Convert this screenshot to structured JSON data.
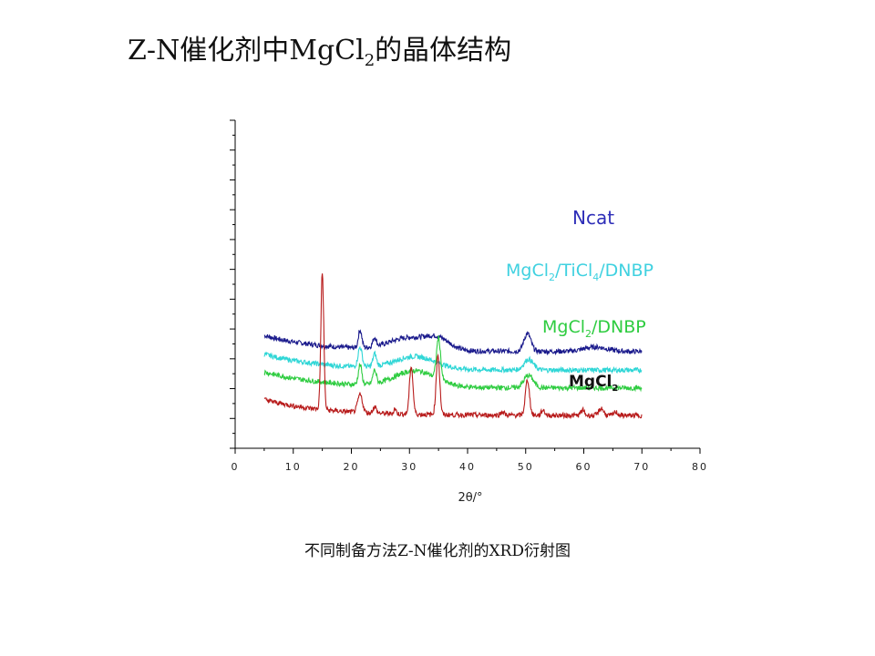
{
  "title": {
    "prefix": "Z-N催化剂中MgCl",
    "sub": "2",
    "suffix": "的晶体结构"
  },
  "caption": "不同制备方法Z-N催化剂的XRD衍射图",
  "chart_data": {
    "type": "line",
    "xlabel": "2θ/°",
    "ylabel": "",
    "xlim": [
      0,
      80
    ],
    "xticks": [
      "0",
      "10",
      "20",
      "30",
      "40",
      "50",
      "60",
      "70",
      "80"
    ],
    "yticks_shown": false,
    "grid": false,
    "series": [
      {
        "name": "Ncat",
        "name_parts": [
          "Ncat"
        ],
        "color": "#1a1a8c",
        "offset": 3.6,
        "peaks": [
          [
            21.5,
            1.0,
            0.3
          ],
          [
            24,
            0.5,
            0.3
          ],
          [
            30,
            0.7,
            3.5
          ],
          [
            35,
            0.55,
            2.0
          ],
          [
            50.3,
            1.0,
            0.6
          ],
          [
            62,
            0.25,
            2.0
          ]
        ],
        "label_color": "#2e2eb8"
      },
      {
        "name": "MgCl2/TiCl4/DNBP",
        "name_parts": [
          "MgCl",
          "2",
          "/TiCl",
          "4",
          "/DNBP"
        ],
        "color": "#2ed6d6",
        "offset": 2.55,
        "peaks": [
          [
            21.5,
            1.1,
            0.35
          ],
          [
            24,
            0.7,
            0.3
          ],
          [
            31,
            0.7,
            3.5
          ],
          [
            50.5,
            0.6,
            0.8
          ]
        ],
        "label_color": "#3fd1e0"
      },
      {
        "name": "MgCl2/DNBP",
        "name_parts": [
          "MgCl",
          "2",
          "/DNBP"
        ],
        "color": "#2ecc40",
        "offset": 1.55,
        "peaks": [
          [
            21.5,
            1.1,
            0.3
          ],
          [
            24,
            0.75,
            0.3
          ],
          [
            31,
            0.9,
            3.5
          ],
          [
            35,
            2.3,
            0.35
          ],
          [
            50.5,
            0.7,
            0.8
          ]
        ],
        "label_color": "#2ecc40"
      },
      {
        "name": "MgCl2",
        "name_parts": [
          "MgCl",
          "2"
        ],
        "color": "#b81c1c",
        "offset": 0.0,
        "peaks": [
          [
            15,
            7.7,
            0.25
          ],
          [
            21.5,
            1.0,
            0.4
          ],
          [
            24,
            0.35,
            0.3
          ],
          [
            27.5,
            0.3,
            0.2
          ],
          [
            30.3,
            2.7,
            0.3
          ],
          [
            34.9,
            3.4,
            0.3
          ],
          [
            46,
            0.2,
            0.3
          ],
          [
            50.3,
            2.0,
            0.35
          ],
          [
            53,
            0.3,
            0.3
          ],
          [
            59.8,
            0.3,
            0.3
          ],
          [
            63,
            0.4,
            0.4
          ],
          [
            65.5,
            0.2,
            0.3
          ]
        ],
        "label_color": "#111111"
      }
    ]
  }
}
